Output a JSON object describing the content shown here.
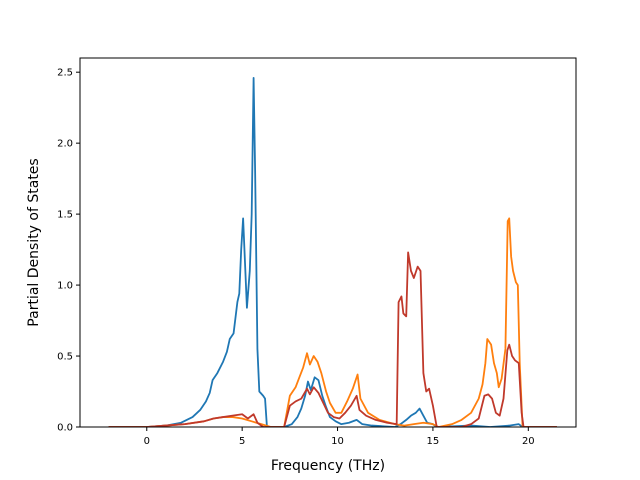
{
  "chart_data": {
    "type": "line",
    "xlabel": "Frequency (THz)",
    "ylabel": "Partial Density of States",
    "xlim": [
      -3.5,
      22.5
    ],
    "ylim": [
      0,
      2.6
    ],
    "xticks": [
      0,
      5,
      10,
      15,
      20
    ],
    "yticks": [
      0.0,
      0.5,
      1.0,
      1.5,
      2.0,
      2.5
    ],
    "xtick_labels": [
      "0",
      "5",
      "10",
      "15",
      "20"
    ],
    "ytick_labels": [
      "0.0",
      "0.5",
      "1.0",
      "1.5",
      "2.0",
      "2.5"
    ],
    "grid": false,
    "series": [
      {
        "color": "#1f77b4",
        "points": [
          [
            -2,
            0
          ],
          [
            0,
            0
          ],
          [
            1,
            0.01
          ],
          [
            1.8,
            0.03
          ],
          [
            2.4,
            0.07
          ],
          [
            2.8,
            0.12
          ],
          [
            3.1,
            0.18
          ],
          [
            3.3,
            0.24
          ],
          [
            3.45,
            0.33
          ],
          [
            3.7,
            0.38
          ],
          [
            4.0,
            0.46
          ],
          [
            4.2,
            0.53
          ],
          [
            4.35,
            0.62
          ],
          [
            4.55,
            0.66
          ],
          [
            4.75,
            0.88
          ],
          [
            4.85,
            0.94
          ],
          [
            4.95,
            1.25
          ],
          [
            5.05,
            1.47
          ],
          [
            5.12,
            1.25
          ],
          [
            5.25,
            0.84
          ],
          [
            5.4,
            1.1
          ],
          [
            5.5,
            1.5
          ],
          [
            5.6,
            2.46
          ],
          [
            5.68,
            1.8
          ],
          [
            5.8,
            0.55
          ],
          [
            5.9,
            0.25
          ],
          [
            6.1,
            0.22
          ],
          [
            6.2,
            0.2
          ],
          [
            6.3,
            0
          ],
          [
            7.2,
            0
          ],
          [
            7.6,
            0.02
          ],
          [
            7.9,
            0.07
          ],
          [
            8.1,
            0.13
          ],
          [
            8.3,
            0.22
          ],
          [
            8.45,
            0.32
          ],
          [
            8.6,
            0.26
          ],
          [
            8.8,
            0.35
          ],
          [
            9.0,
            0.33
          ],
          [
            9.2,
            0.22
          ],
          [
            9.4,
            0.14
          ],
          [
            9.6,
            0.07
          ],
          [
            9.9,
            0.04
          ],
          [
            10.2,
            0.02
          ],
          [
            10.6,
            0.03
          ],
          [
            11.0,
            0.05
          ],
          [
            11.3,
            0.02
          ],
          [
            11.8,
            0.01
          ],
          [
            13.0,
            0
          ],
          [
            13.3,
            0.02
          ],
          [
            13.6,
            0.05
          ],
          [
            13.85,
            0.08
          ],
          [
            14.1,
            0.1
          ],
          [
            14.3,
            0.13
          ],
          [
            14.5,
            0.08
          ],
          [
            14.7,
            0.03
          ],
          [
            15.0,
            0.02
          ],
          [
            15.2,
            0
          ],
          [
            17.0,
            0.01
          ],
          [
            18.0,
            0
          ],
          [
            19.0,
            0.01
          ],
          [
            19.5,
            0.02
          ],
          [
            19.7,
            0
          ],
          [
            21.5,
            0
          ]
        ]
      },
      {
        "color": "#ff7f0e",
        "points": [
          [
            -2,
            0
          ],
          [
            0,
            0
          ],
          [
            1,
            0.01
          ],
          [
            2,
            0.02
          ],
          [
            3,
            0.04
          ],
          [
            3.5,
            0.06
          ],
          [
            4,
            0.07
          ],
          [
            4.5,
            0.07
          ],
          [
            5,
            0.06
          ],
          [
            5.5,
            0.04
          ],
          [
            6,
            0.02
          ],
          [
            6.5,
            0
          ],
          [
            7.2,
            0
          ],
          [
            7.5,
            0.22
          ],
          [
            7.8,
            0.28
          ],
          [
            8.0,
            0.35
          ],
          [
            8.2,
            0.42
          ],
          [
            8.4,
            0.52
          ],
          [
            8.55,
            0.44
          ],
          [
            8.75,
            0.5
          ],
          [
            8.95,
            0.46
          ],
          [
            9.15,
            0.38
          ],
          [
            9.4,
            0.25
          ],
          [
            9.6,
            0.17
          ],
          [
            9.9,
            0.1
          ],
          [
            10.2,
            0.1
          ],
          [
            10.5,
            0.18
          ],
          [
            10.8,
            0.27
          ],
          [
            11.05,
            0.37
          ],
          [
            11.2,
            0.2
          ],
          [
            11.6,
            0.1
          ],
          [
            12.2,
            0.05
          ],
          [
            13.0,
            0.02
          ],
          [
            13.5,
            0.01
          ],
          [
            14,
            0.02
          ],
          [
            14.5,
            0.03
          ],
          [
            15,
            0.02
          ],
          [
            15.3,
            0
          ],
          [
            16,
            0.02
          ],
          [
            16.5,
            0.05
          ],
          [
            17,
            0.1
          ],
          [
            17.4,
            0.2
          ],
          [
            17.6,
            0.3
          ],
          [
            17.75,
            0.45
          ],
          [
            17.85,
            0.62
          ],
          [
            18.05,
            0.58
          ],
          [
            18.2,
            0.45
          ],
          [
            18.35,
            0.38
          ],
          [
            18.45,
            0.28
          ],
          [
            18.6,
            0.34
          ],
          [
            18.8,
            0.55
          ],
          [
            18.92,
            1.45
          ],
          [
            19.0,
            1.47
          ],
          [
            19.1,
            1.2
          ],
          [
            19.2,
            1.1
          ],
          [
            19.35,
            1.02
          ],
          [
            19.45,
            1.0
          ],
          [
            19.55,
            0.45
          ],
          [
            19.7,
            0
          ],
          [
            21.5,
            0
          ]
        ]
      },
      {
        "color": "#c0392b",
        "points": [
          [
            -2,
            0
          ],
          [
            0,
            0
          ],
          [
            1,
            0.01
          ],
          [
            2,
            0.02
          ],
          [
            3,
            0.04
          ],
          [
            3.5,
            0.06
          ],
          [
            4,
            0.07
          ],
          [
            4.5,
            0.08
          ],
          [
            5,
            0.09
          ],
          [
            5.3,
            0.06
          ],
          [
            5.6,
            0.09
          ],
          [
            5.8,
            0.03
          ],
          [
            6.1,
            0
          ],
          [
            7.2,
            0
          ],
          [
            7.5,
            0.15
          ],
          [
            7.8,
            0.18
          ],
          [
            8.1,
            0.2
          ],
          [
            8.4,
            0.27
          ],
          [
            8.55,
            0.23
          ],
          [
            8.75,
            0.28
          ],
          [
            9.0,
            0.24
          ],
          [
            9.25,
            0.17
          ],
          [
            9.5,
            0.1
          ],
          [
            9.8,
            0.07
          ],
          [
            10.1,
            0.06
          ],
          [
            10.4,
            0.1
          ],
          [
            10.7,
            0.15
          ],
          [
            11.0,
            0.22
          ],
          [
            11.15,
            0.12
          ],
          [
            11.5,
            0.08
          ],
          [
            12.0,
            0.05
          ],
          [
            12.6,
            0.03
          ],
          [
            13.1,
            0.02
          ],
          [
            13.2,
            0.88
          ],
          [
            13.35,
            0.92
          ],
          [
            13.45,
            0.8
          ],
          [
            13.6,
            0.78
          ],
          [
            13.7,
            1.23
          ],
          [
            13.85,
            1.1
          ],
          [
            14.0,
            1.05
          ],
          [
            14.2,
            1.13
          ],
          [
            14.35,
            1.1
          ],
          [
            14.5,
            0.38
          ],
          [
            14.65,
            0.25
          ],
          [
            14.8,
            0.27
          ],
          [
            15.0,
            0.15
          ],
          [
            15.2,
            0
          ],
          [
            16.5,
            0
          ],
          [
            17.0,
            0.02
          ],
          [
            17.4,
            0.06
          ],
          [
            17.7,
            0.22
          ],
          [
            17.9,
            0.23
          ],
          [
            18.1,
            0.2
          ],
          [
            18.3,
            0.1
          ],
          [
            18.5,
            0.08
          ],
          [
            18.7,
            0.2
          ],
          [
            18.9,
            0.54
          ],
          [
            19.0,
            0.58
          ],
          [
            19.15,
            0.5
          ],
          [
            19.3,
            0.47
          ],
          [
            19.5,
            0.45
          ],
          [
            19.65,
            0.1
          ],
          [
            19.75,
            0
          ],
          [
            21.5,
            0
          ]
        ]
      }
    ]
  }
}
